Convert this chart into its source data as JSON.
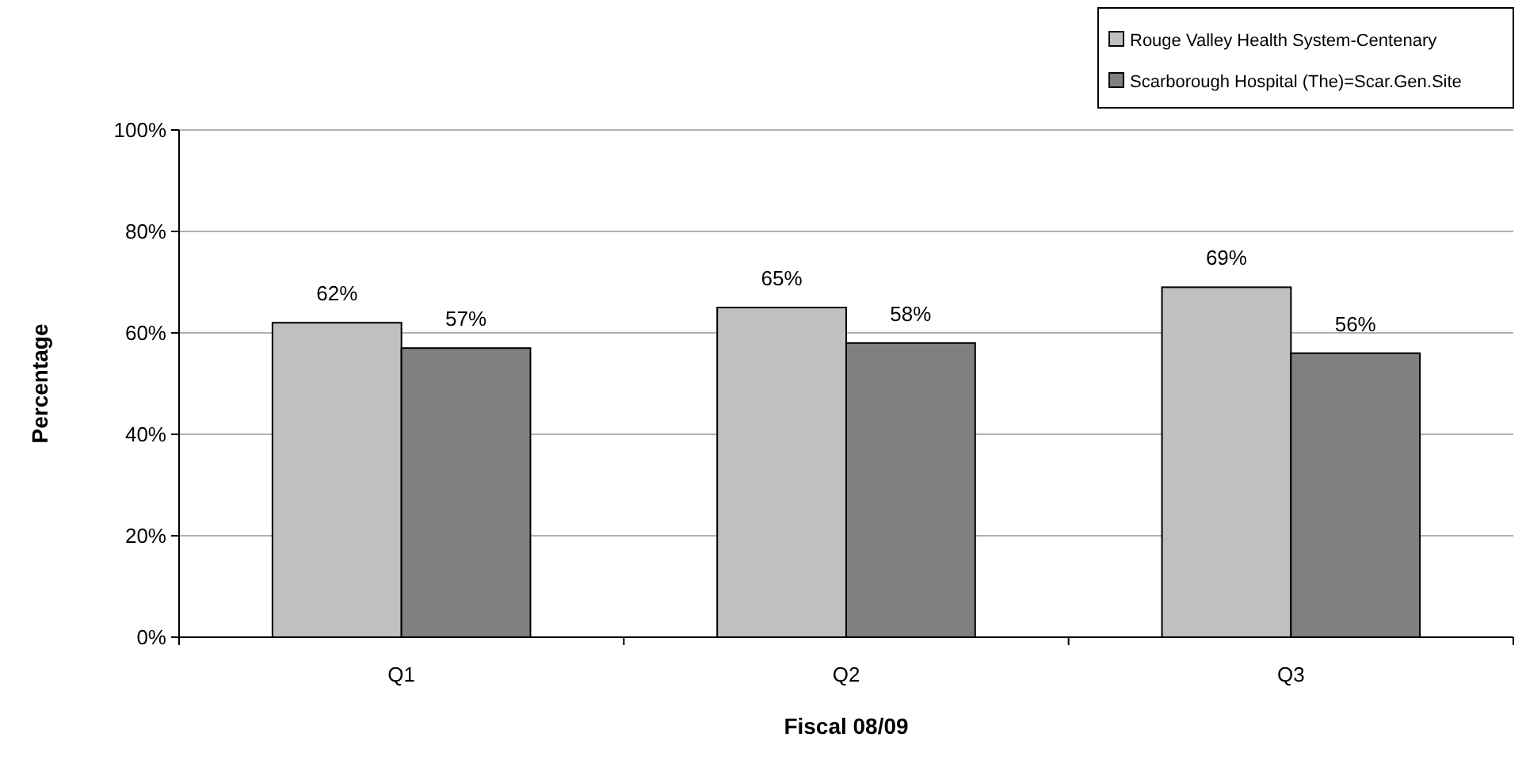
{
  "chart_data": {
    "type": "bar",
    "xlabel": "Fiscal 08/09",
    "ylabel": "Percentage",
    "categories": [
      "Q1",
      "Q2",
      "Q3"
    ],
    "series": [
      {
        "name": "Rouge Valley Health System-Centenary",
        "color": "#c0c0c0",
        "values": [
          62,
          65,
          69
        ],
        "value_labels": [
          "62%",
          "65%",
          "69%"
        ]
      },
      {
        "name": "Scarborough Hospital (The)=Scar.Gen.Site",
        "color": "#808080",
        "values": [
          57,
          58,
          56
        ],
        "value_labels": [
          "57%",
          "58%",
          "56%"
        ]
      }
    ],
    "ylim": [
      0,
      100
    ],
    "yticks": [
      {
        "value": 0,
        "label": "0%"
      },
      {
        "value": 20,
        "label": "20%"
      },
      {
        "value": 40,
        "label": "40%"
      },
      {
        "value": 60,
        "label": "60%"
      },
      {
        "value": 80,
        "label": "80%"
      },
      {
        "value": 100,
        "label": "100%"
      }
    ],
    "grid": "y",
    "legend": "top right"
  }
}
